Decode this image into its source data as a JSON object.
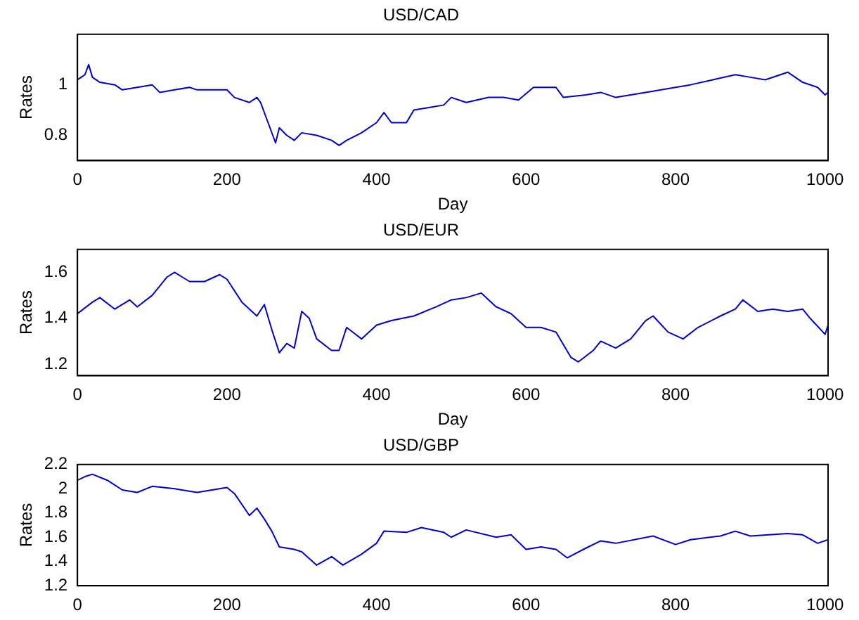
{
  "chart_data": [
    {
      "type": "line",
      "title": "USD/CAD",
      "xlabel": "Day",
      "ylabel": "Rates",
      "xlim": [
        0,
        1004
      ],
      "xticks": [
        0,
        200,
        400,
        600,
        800,
        1000
      ],
      "ylim": [
        0.7,
        1.2
      ],
      "yticks": [
        0.8,
        1
      ],
      "grid": false,
      "legend": false,
      "series": [
        {
          "color": "#0000cc",
          "x": [
            0,
            5,
            10,
            15,
            20,
            30,
            50,
            60,
            80,
            100,
            110,
            130,
            150,
            160,
            180,
            200,
            210,
            230,
            240,
            245,
            255,
            265,
            270,
            280,
            290,
            300,
            320,
            340,
            350,
            360,
            380,
            400,
            410,
            420,
            440,
            450,
            470,
            490,
            500,
            520,
            550,
            570,
            590,
            610,
            640,
            650,
            680,
            700,
            720,
            760,
            800,
            820,
            850,
            880,
            900,
            920,
            950,
            970,
            990,
            1000,
            1004
          ],
          "values": [
            1.02,
            1.03,
            1.04,
            1.08,
            1.03,
            1.01,
            1.0,
            0.98,
            0.99,
            1.0,
            0.97,
            0.98,
            0.99,
            0.98,
            0.98,
            0.98,
            0.95,
            0.93,
            0.95,
            0.93,
            0.85,
            0.77,
            0.83,
            0.8,
            0.78,
            0.81,
            0.8,
            0.78,
            0.76,
            0.78,
            0.81,
            0.85,
            0.89,
            0.85,
            0.85,
            0.9,
            0.91,
            0.92,
            0.95,
            0.93,
            0.95,
            0.95,
            0.94,
            0.99,
            0.99,
            0.95,
            0.96,
            0.97,
            0.95,
            0.97,
            0.99,
            1.0,
            1.02,
            1.04,
            1.03,
            1.02,
            1.05,
            1.01,
            0.99,
            0.96,
            0.97
          ]
        }
      ]
    },
    {
      "type": "line",
      "title": "USD/EUR",
      "xlabel": "Day",
      "ylabel": "Rates",
      "xlim": [
        0,
        1004
      ],
      "xticks": [
        0,
        200,
        400,
        600,
        800,
        1000
      ],
      "ylim": [
        1.15,
        1.7
      ],
      "yticks": [
        1.2,
        1.4,
        1.6
      ],
      "grid": false,
      "legend": false,
      "series": [
        {
          "color": "#0000cc",
          "x": [
            0,
            20,
            30,
            50,
            70,
            80,
            100,
            120,
            130,
            150,
            170,
            190,
            200,
            220,
            240,
            250,
            260,
            270,
            280,
            290,
            300,
            310,
            320,
            340,
            350,
            360,
            380,
            400,
            420,
            450,
            480,
            500,
            520,
            540,
            560,
            580,
            600,
            620,
            640,
            660,
            670,
            690,
            700,
            720,
            740,
            760,
            770,
            790,
            810,
            830,
            860,
            880,
            890,
            910,
            930,
            950,
            970,
            980,
            1000,
            1004
          ],
          "values": [
            1.42,
            1.47,
            1.49,
            1.44,
            1.48,
            1.45,
            1.5,
            1.58,
            1.6,
            1.56,
            1.56,
            1.59,
            1.57,
            1.47,
            1.41,
            1.46,
            1.35,
            1.25,
            1.29,
            1.27,
            1.43,
            1.4,
            1.31,
            1.26,
            1.26,
            1.36,
            1.31,
            1.37,
            1.39,
            1.41,
            1.45,
            1.48,
            1.49,
            1.51,
            1.45,
            1.42,
            1.36,
            1.36,
            1.34,
            1.23,
            1.21,
            1.26,
            1.3,
            1.27,
            1.31,
            1.39,
            1.41,
            1.34,
            1.31,
            1.36,
            1.41,
            1.44,
            1.48,
            1.43,
            1.44,
            1.43,
            1.44,
            1.4,
            1.33,
            1.37
          ]
        }
      ]
    },
    {
      "type": "line",
      "title": "USD/GBP",
      "ylabel": "Rates",
      "xlim": [
        0,
        1004
      ],
      "xticks": [
        0,
        200,
        400,
        600,
        800,
        1000
      ],
      "ylim": [
        1.2,
        2.2
      ],
      "yticks": [
        1.2,
        1.4,
        1.6,
        1.8,
        2,
        2.2
      ],
      "grid": false,
      "legend": false,
      "series": [
        {
          "color": "#0000cc",
          "x": [
            0,
            10,
            20,
            40,
            60,
            80,
            100,
            130,
            160,
            180,
            200,
            210,
            230,
            240,
            250,
            260,
            270,
            290,
            300,
            320,
            340,
            355,
            380,
            400,
            410,
            440,
            460,
            490,
            500,
            520,
            560,
            580,
            600,
            620,
            640,
            655,
            680,
            700,
            720,
            770,
            800,
            820,
            860,
            880,
            900,
            950,
            970,
            990,
            1004
          ],
          "values": [
            2.07,
            2.1,
            2.12,
            2.07,
            1.99,
            1.97,
            2.02,
            2.0,
            1.97,
            1.99,
            2.01,
            1.96,
            1.78,
            1.84,
            1.75,
            1.65,
            1.52,
            1.5,
            1.48,
            1.37,
            1.44,
            1.37,
            1.46,
            1.55,
            1.65,
            1.64,
            1.68,
            1.64,
            1.6,
            1.66,
            1.6,
            1.62,
            1.5,
            1.52,
            1.5,
            1.43,
            1.51,
            1.57,
            1.55,
            1.61,
            1.54,
            1.58,
            1.61,
            1.65,
            1.61,
            1.63,
            1.62,
            1.55,
            1.58
          ]
        }
      ]
    }
  ]
}
